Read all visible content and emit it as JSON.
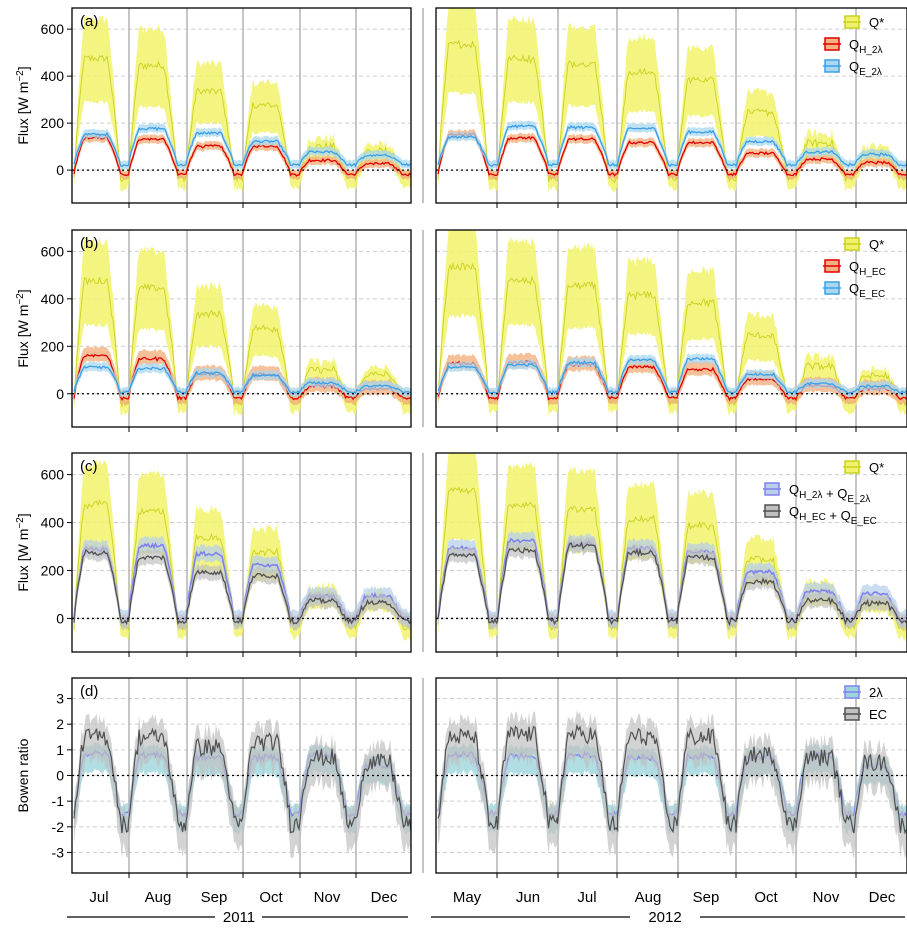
{
  "figure": {
    "year_labels": [
      "2011",
      "2012"
    ],
    "months_left": [
      "Jul",
      "Aug",
      "Sep",
      "Oct",
      "Nov",
      "Dec"
    ],
    "months_right": [
      "May",
      "Jun",
      "Jul",
      "Aug",
      "Sep",
      "Oct",
      "Nov",
      "Dec"
    ],
    "colors": {
      "qstar_band": "#f2f26a",
      "qstar_line": "#c8d21e",
      "qh": "#e00000",
      "qh_band": "#f4b080",
      "qe": "#3a9fe8",
      "qe_band": "#a8d8f0",
      "sum2l": "#8080f0",
      "sum2l_band": "#b8d0ea",
      "sumec": "#505050",
      "sumec_band": "#c0c0c0",
      "bowen_2l_band": "#9ed6dc"
    }
  },
  "chart_data": [
    {
      "type": "line",
      "panel": "(a)",
      "ylabel": "Flux [W m⁻²]",
      "ylim": [
        -140,
        690
      ],
      "yticks": [
        0,
        200,
        400,
        600
      ],
      "grid": true,
      "legend_position": "top-right",
      "periods": [
        {
          "year": "2011",
          "x": [
            "Jul",
            "Aug",
            "Sep",
            "Oct",
            "Nov",
            "Dec"
          ]
        },
        {
          "year": "2012",
          "x": [
            "May",
            "Jun",
            "Jul",
            "Aug",
            "Sep",
            "Oct",
            "Nov",
            "Dec"
          ]
        }
      ],
      "series": [
        {
          "name": "Q*",
          "peak_values": [
            [
              470,
              440,
              330,
              270,
              95,
              75
            ],
            [
              530,
              470,
              450,
              410,
              380,
              240,
              110,
              70
            ]
          ],
          "night_value": -40
        },
        {
          "name": "Q",
          "sub": "H_2λ",
          "peak_values": [
            [
              135,
              130,
              100,
              100,
              40,
              25
            ],
            [
              150,
              135,
              130,
              115,
              115,
              70,
              45,
              30
            ]
          ],
          "night_value": -20
        },
        {
          "name": "Q",
          "sub": "E_2λ",
          "peak_values": [
            [
              150,
              175,
              155,
              120,
              75,
              60
            ],
            [
              140,
              185,
              180,
              175,
              160,
              120,
              75,
              65
            ]
          ],
          "night_value": 20
        }
      ]
    },
    {
      "type": "line",
      "panel": "(b)",
      "ylabel": "Flux [W m⁻²]",
      "ylim": [
        -140,
        690
      ],
      "yticks": [
        0,
        200,
        400,
        600
      ],
      "grid": true,
      "legend_position": "top-right",
      "periods": [
        {
          "year": "2011",
          "x": [
            "Jul",
            "Aug",
            "Sep",
            "Oct",
            "Nov",
            "Dec"
          ]
        },
        {
          "year": "2012",
          "x": [
            "May",
            "Jun",
            "Jul",
            "Aug",
            "Sep",
            "Oct",
            "Nov",
            "Dec"
          ]
        }
      ],
      "series": [
        {
          "name": "Q*",
          "peak_values": [
            [
              470,
              440,
              330,
              270,
              95,
              75
            ],
            [
              530,
              470,
              450,
              410,
              380,
              240,
              110,
              70
            ]
          ],
          "night_value": -40
        },
        {
          "name": "Q",
          "sub": "H_EC",
          "peak_values": [
            [
              160,
              145,
              80,
              80,
              30,
              20
            ],
            [
              125,
              130,
              120,
              110,
              100,
              60,
              30,
              20
            ]
          ],
          "night_value": -20
        },
        {
          "name": "Q",
          "sub": "E_EC",
          "peak_values": [
            [
              110,
              105,
              85,
              75,
              45,
              30
            ],
            [
              110,
              120,
              130,
              140,
              145,
              80,
              40,
              30
            ]
          ],
          "night_value": 5
        }
      ]
    },
    {
      "type": "line",
      "panel": "(c)",
      "ylabel": "Flux [W m⁻²]",
      "ylim": [
        -140,
        690
      ],
      "yticks": [
        0,
        200,
        400,
        600
      ],
      "grid": true,
      "legend_position": "top-right",
      "periods": [
        {
          "year": "2011",
          "x": [
            "Jul",
            "Aug",
            "Sep",
            "Oct",
            "Nov",
            "Dec"
          ]
        },
        {
          "year": "2012",
          "x": [
            "May",
            "Jun",
            "Jul",
            "Aug",
            "Sep",
            "Oct",
            "Nov",
            "Dec"
          ]
        }
      ],
      "series": [
        {
          "name": "Q*",
          "peak_values": [
            [
              470,
              440,
              330,
              270,
              95,
              75
            ],
            [
              530,
              470,
              450,
              410,
              380,
              240,
              110,
              70
            ]
          ],
          "night_value": -40
        },
        {
          "name": "Q",
          "sub": "H_2λ",
          "plus": "Q",
          "sub2": "E_2λ",
          "peak_values": [
            [
              285,
              300,
              265,
              220,
              90,
              90
            ],
            [
              290,
              320,
              310,
              290,
              275,
              190,
              110,
              100
            ]
          ],
          "night_value": -5
        },
        {
          "name": "Q",
          "sub": "H_EC",
          "plus": "Q",
          "sub2": "E_EC",
          "peak_values": [
            [
              270,
              250,
              190,
              175,
              70,
              60
            ],
            [
              260,
              280,
              300,
              270,
              250,
              150,
              70,
              60
            ]
          ],
          "night_value": -15
        }
      ]
    },
    {
      "type": "line",
      "panel": "(d)",
      "ylabel": "Bowen ratio",
      "ylim": [
        -3.8,
        3.8
      ],
      "yticks": [
        -3,
        -2,
        -1,
        0,
        1,
        2,
        3
      ],
      "grid": true,
      "legend_position": "top-right",
      "periods": [
        {
          "year": "2011",
          "x": [
            "Jul",
            "Aug",
            "Sep",
            "Oct",
            "Nov",
            "Dec"
          ]
        },
        {
          "year": "2012",
          "x": [
            "May",
            "Jun",
            "Jul",
            "Aug",
            "Sep",
            "Oct",
            "Nov",
            "Dec"
          ]
        }
      ],
      "series": [
        {
          "name": "2λ",
          "peak_values": [
            [
              0.85,
              0.8,
              0.7,
              0.7,
              0.8,
              0.4
            ],
            [
              0.8,
              0.75,
              0.8,
              0.7,
              0.75,
              0.7,
              0.8,
              0.4
            ]
          ],
          "night_value": -1.5
        },
        {
          "name": "EC",
          "peak_values": [
            [
              1.5,
              1.5,
              1.1,
              1.3,
              0.7,
              0.5
            ],
            [
              1.5,
              1.6,
              1.6,
              1.5,
              1.5,
              0.8,
              0.7,
              0.5
            ]
          ],
          "night_value": -1.9
        }
      ]
    }
  ]
}
